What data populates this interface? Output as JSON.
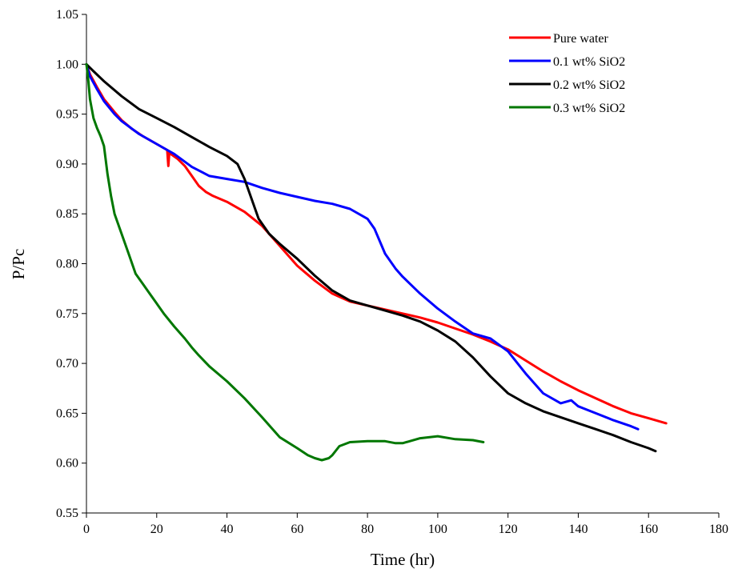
{
  "chart_data": {
    "type": "line",
    "title": "",
    "xlabel": "Time (hr)",
    "ylabel": "P/Pc",
    "xlim": [
      0,
      180
    ],
    "ylim": [
      0.55,
      1.05
    ],
    "xticks": [
      0,
      20,
      40,
      60,
      80,
      100,
      120,
      140,
      160,
      180
    ],
    "yticks": [
      0.55,
      0.6,
      0.65,
      0.7,
      0.75,
      0.8,
      0.85,
      0.9,
      0.95,
      1.0,
      1.05
    ],
    "xtick_labels": [
      "0",
      "20",
      "40",
      "60",
      "80",
      "100",
      "120",
      "140",
      "160",
      "180"
    ],
    "ytick_labels": [
      "0.55",
      "0.60",
      "0.65",
      "0.70",
      "0.75",
      "0.80",
      "0.85",
      "0.90",
      "0.95",
      "1.00",
      "1.05"
    ],
    "grid": false,
    "legend_position": "top-right",
    "series": [
      {
        "name": "Pure water",
        "color": "#ff0000",
        "x": [
          0,
          1,
          3,
          5,
          8,
          10,
          13,
          16,
          20,
          23,
          23.3,
          23.6,
          24,
          26,
          28,
          30,
          32,
          34,
          36,
          40,
          45,
          50,
          55,
          60,
          65,
          70,
          75,
          80,
          85,
          90,
          95,
          100,
          105,
          110,
          115,
          120,
          125,
          130,
          135,
          140,
          145,
          150,
          155,
          160,
          165
        ],
        "y": [
          1.0,
          0.99,
          0.977,
          0.965,
          0.952,
          0.944,
          0.935,
          0.928,
          0.92,
          0.914,
          0.898,
          0.912,
          0.91,
          0.905,
          0.898,
          0.888,
          0.878,
          0.872,
          0.868,
          0.862,
          0.852,
          0.838,
          0.818,
          0.798,
          0.783,
          0.77,
          0.762,
          0.758,
          0.754,
          0.75,
          0.746,
          0.741,
          0.735,
          0.729,
          0.722,
          0.714,
          0.703,
          0.692,
          0.682,
          0.673,
          0.665,
          0.657,
          0.65,
          0.645,
          0.64
        ]
      },
      {
        "name": "0.1 wt% SiO2",
        "color": "#0000ff",
        "x": [
          0,
          1,
          3,
          5,
          8,
          10,
          15,
          20,
          25,
          30,
          35,
          40,
          45,
          50,
          55,
          60,
          65,
          70,
          75,
          80,
          82,
          85,
          88,
          90,
          95,
          100,
          105,
          110,
          115,
          120,
          125,
          130,
          135,
          138,
          140,
          145,
          150,
          155,
          157
        ],
        "y": [
          1.0,
          0.988,
          0.975,
          0.963,
          0.95,
          0.943,
          0.93,
          0.92,
          0.91,
          0.897,
          0.888,
          0.885,
          0.882,
          0.876,
          0.871,
          0.867,
          0.863,
          0.86,
          0.855,
          0.845,
          0.835,
          0.81,
          0.795,
          0.787,
          0.77,
          0.755,
          0.742,
          0.73,
          0.725,
          0.712,
          0.69,
          0.67,
          0.66,
          0.663,
          0.657,
          0.65,
          0.643,
          0.637,
          0.634
        ]
      },
      {
        "name": "0.2 wt% SiO2",
        "color": "#000000",
        "x": [
          0,
          2,
          5,
          10,
          15,
          20,
          25,
          30,
          35,
          40,
          43,
          45,
          47,
          49,
          52,
          55,
          60,
          65,
          70,
          75,
          80,
          85,
          90,
          95,
          100,
          105,
          110,
          115,
          120,
          125,
          130,
          135,
          140,
          145,
          150,
          155,
          160,
          162
        ],
        "y": [
          1.0,
          0.993,
          0.983,
          0.968,
          0.955,
          0.946,
          0.937,
          0.927,
          0.917,
          0.908,
          0.9,
          0.885,
          0.865,
          0.845,
          0.83,
          0.82,
          0.805,
          0.788,
          0.773,
          0.763,
          0.758,
          0.753,
          0.748,
          0.742,
          0.733,
          0.722,
          0.706,
          0.687,
          0.67,
          0.66,
          0.652,
          0.646,
          0.64,
          0.634,
          0.628,
          0.621,
          0.615,
          0.612
        ]
      },
      {
        "name": "0.3 wt% SiO2",
        "color": "#007700",
        "x": [
          0,
          0.5,
          1,
          2,
          3,
          4,
          5,
          6,
          7,
          8,
          10,
          12,
          14,
          16,
          18,
          20,
          22,
          25,
          28,
          30,
          32,
          35,
          40,
          45,
          50,
          55,
          60,
          63,
          65,
          67,
          69,
          70,
          72,
          75,
          80,
          85,
          88,
          90,
          95,
          100,
          105,
          110,
          113
        ],
        "y": [
          1.0,
          0.985,
          0.965,
          0.946,
          0.936,
          0.928,
          0.918,
          0.89,
          0.868,
          0.85,
          0.83,
          0.81,
          0.79,
          0.78,
          0.77,
          0.76,
          0.75,
          0.737,
          0.725,
          0.716,
          0.708,
          0.697,
          0.682,
          0.665,
          0.646,
          0.626,
          0.615,
          0.608,
          0.605,
          0.603,
          0.605,
          0.608,
          0.617,
          0.621,
          0.622,
          0.622,
          0.62,
          0.62,
          0.625,
          0.627,
          0.624,
          0.623,
          0.621
        ]
      }
    ]
  }
}
